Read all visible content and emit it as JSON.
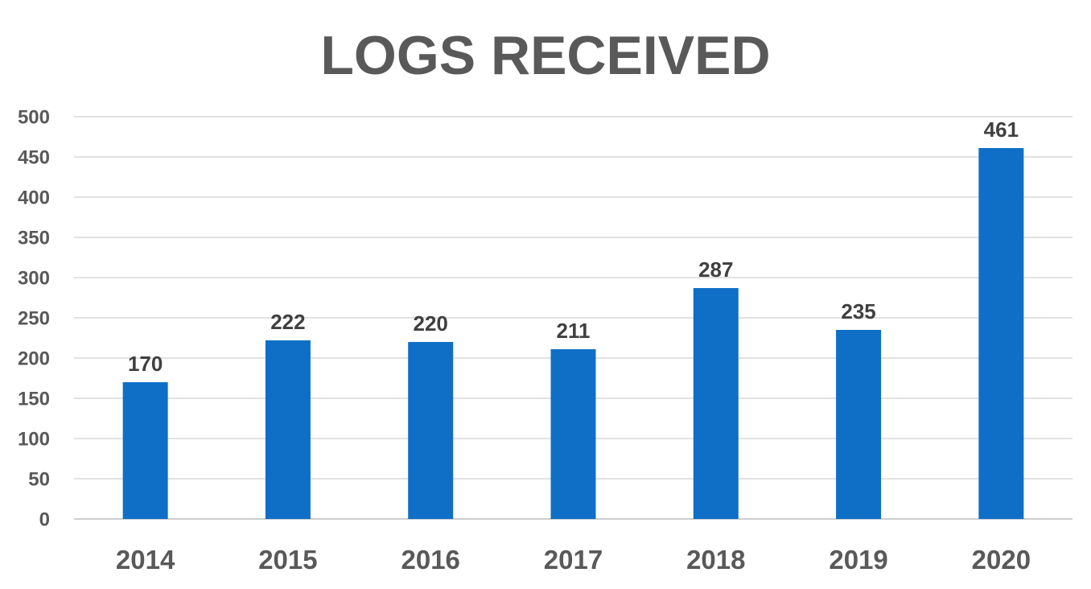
{
  "chart_data": {
    "type": "bar",
    "title": "LOGS RECEIVED",
    "xlabel": "",
    "ylabel": "",
    "categories": [
      "2014",
      "2015",
      "2016",
      "2017",
      "2018",
      "2019",
      "2020"
    ],
    "values": [
      170,
      222,
      220,
      211,
      287,
      235,
      461
    ],
    "data_labels": [
      "170",
      "222",
      "220",
      "211",
      "287",
      "235",
      "461"
    ],
    "yticks": [
      "0",
      "50",
      "100",
      "150",
      "200",
      "250",
      "300",
      "350",
      "400",
      "450",
      "500"
    ],
    "ylim": [
      0,
      500
    ],
    "grid": true,
    "legend": "none",
    "bar_color": "#0f6fc6"
  }
}
